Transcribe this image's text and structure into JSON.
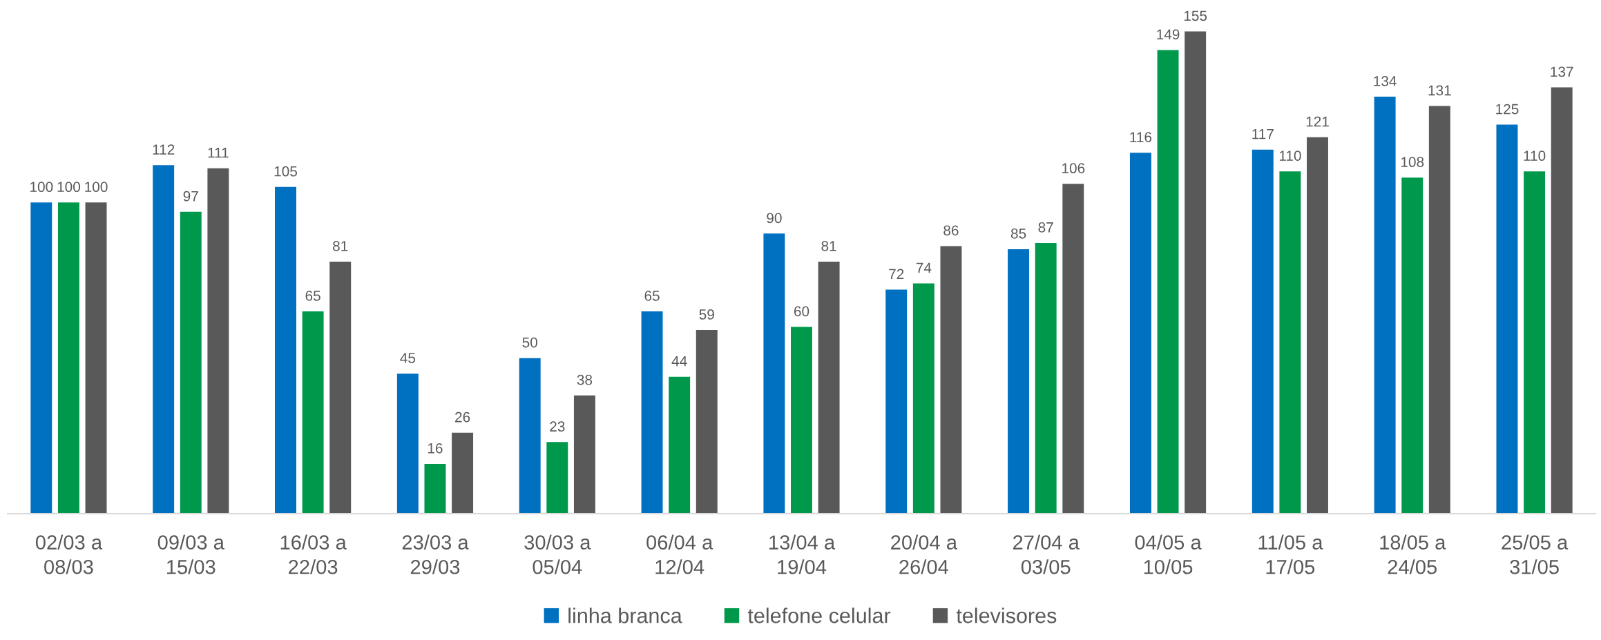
{
  "chart_data": {
    "type": "bar",
    "categories": [
      "02/03 a\n08/03",
      "09/03 a\n15/03",
      "16/03 a\n22/03",
      "23/03 a\n29/03",
      "30/03 a\n05/04",
      "06/04 a\n12/04",
      "13/04 a\n19/04",
      "20/04 a\n26/04",
      "27/04 a\n03/05",
      "04/05 a\n10/05",
      "11/05 a\n17/05",
      "18/05 a\n24/05",
      "25/05 a\n31/05"
    ],
    "series": [
      {
        "name": "linha branca",
        "color": "#0070c0",
        "values": [
          100,
          112,
          105,
          45,
          50,
          65,
          90,
          72,
          85,
          116,
          117,
          134,
          125
        ]
      },
      {
        "name": "telefone celular",
        "color": "#00994c",
        "values": [
          100,
          97,
          65,
          16,
          23,
          44,
          60,
          74,
          87,
          149,
          110,
          108,
          110
        ]
      },
      {
        "name": "televisores",
        "color": "#595959",
        "values": [
          100,
          111,
          81,
          26,
          38,
          59,
          81,
          86,
          106,
          155,
          121,
          131,
          137
        ]
      }
    ],
    "data_labels": true,
    "legend": "bottom",
    "tick_labels": "x"
  }
}
